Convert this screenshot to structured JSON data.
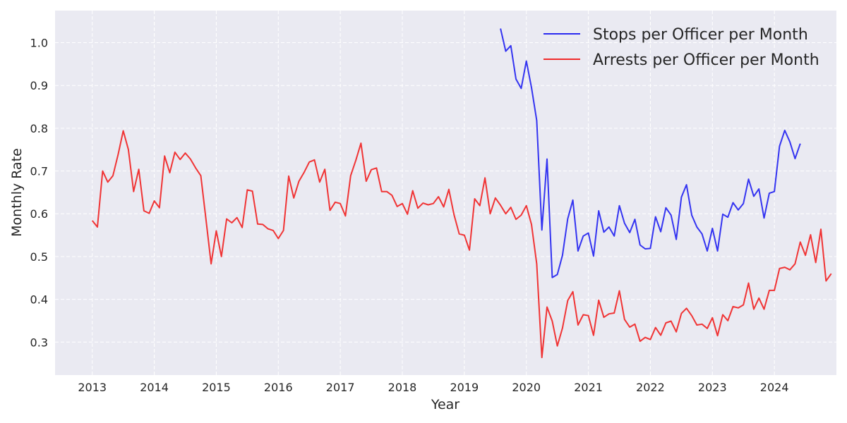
{
  "chart_data": {
    "type": "line",
    "title": "",
    "xlabel": "Year",
    "ylabel": "Monthly Rate",
    "xlim": [
      2012.4,
      2025.0
    ],
    "ylim": [
      0.223,
      1.075
    ],
    "xticks": [
      2013,
      2014,
      2015,
      2016,
      2017,
      2018,
      2019,
      2020,
      2021,
      2022,
      2023,
      2024
    ],
    "xtick_labels": [
      "2013",
      "2014",
      "2015",
      "2016",
      "2017",
      "2018",
      "2019",
      "2020",
      "2021",
      "2022",
      "2023",
      "2024"
    ],
    "yticks": [
      0.3,
      0.4,
      0.5,
      0.6,
      0.7,
      0.8,
      0.9,
      1.0
    ],
    "ytick_labels": [
      "0.3",
      "0.4",
      "0.5",
      "0.6",
      "0.7",
      "0.8",
      "0.9",
      "1.0"
    ],
    "grid": true,
    "legend_position": "top-right",
    "background_color": "#eaeaf2",
    "series": [
      {
        "name": "Stops per Officer per Month",
        "color": "#2a2af0",
        "x": [
          2019.583,
          2019.667,
          2019.75,
          2019.833,
          2019.917,
          2020.0,
          2020.083,
          2020.167,
          2020.25,
          2020.333,
          2020.417,
          2020.5,
          2020.583,
          2020.667,
          2020.75,
          2020.833,
          2020.917,
          2021.0,
          2021.083,
          2021.167,
          2021.25,
          2021.333,
          2021.417,
          2021.5,
          2021.583,
          2021.667,
          2021.75,
          2021.833,
          2021.917,
          2022.0,
          2022.083,
          2022.167,
          2022.25,
          2022.333,
          2022.417,
          2022.5,
          2022.583,
          2022.667,
          2022.75,
          2022.833,
          2022.917,
          2023.0,
          2023.083,
          2023.167,
          2023.25,
          2023.333,
          2023.417,
          2023.5,
          2023.583,
          2023.667,
          2023.75,
          2023.833,
          2023.917,
          2024.0,
          2024.083,
          2024.167,
          2024.25,
          2024.333,
          2024.417
        ],
        "y": [
          1.033,
          0.98,
          0.993,
          0.915,
          0.893,
          0.957,
          0.895,
          0.818,
          0.562,
          0.728,
          0.451,
          0.458,
          0.503,
          0.588,
          0.632,
          0.513,
          0.548,
          0.555,
          0.501,
          0.607,
          0.557,
          0.569,
          0.548,
          0.619,
          0.578,
          0.556,
          0.587,
          0.527,
          0.518,
          0.519,
          0.593,
          0.558,
          0.614,
          0.597,
          0.54,
          0.639,
          0.668,
          0.597,
          0.569,
          0.553,
          0.513,
          0.566,
          0.513,
          0.599,
          0.592,
          0.626,
          0.609,
          0.624,
          0.681,
          0.641,
          0.658,
          0.59,
          0.648,
          0.652,
          0.758,
          0.795,
          0.768,
          0.729,
          0.764
        ]
      },
      {
        "name": "Arrests per Officer per Month",
        "color": "#f02a2a",
        "x": [
          2013.0,
          2013.083,
          2013.167,
          2013.25,
          2013.333,
          2013.417,
          2013.5,
          2013.583,
          2013.667,
          2013.75,
          2013.833,
          2013.917,
          2014.0,
          2014.083,
          2014.167,
          2014.25,
          2014.333,
          2014.417,
          2014.5,
          2014.583,
          2014.667,
          2014.75,
          2014.833,
          2014.917,
          2015.0,
          2015.083,
          2015.167,
          2015.25,
          2015.333,
          2015.417,
          2015.5,
          2015.583,
          2015.667,
          2015.75,
          2015.833,
          2015.917,
          2016.0,
          2016.083,
          2016.167,
          2016.25,
          2016.333,
          2016.417,
          2016.5,
          2016.583,
          2016.667,
          2016.75,
          2016.833,
          2016.917,
          2017.0,
          2017.083,
          2017.167,
          2017.25,
          2017.333,
          2017.417,
          2017.5,
          2017.583,
          2017.667,
          2017.75,
          2017.833,
          2017.917,
          2018.0,
          2018.083,
          2018.167,
          2018.25,
          2018.333,
          2018.417,
          2018.5,
          2018.583,
          2018.667,
          2018.75,
          2018.833,
          2018.917,
          2019.0,
          2019.083,
          2019.167,
          2019.25,
          2019.333,
          2019.417,
          2019.5,
          2019.583,
          2019.667,
          2019.75,
          2019.833,
          2019.917,
          2020.0,
          2020.083,
          2020.167,
          2020.25,
          2020.333,
          2020.417,
          2020.5,
          2020.583,
          2020.667,
          2020.75,
          2020.833,
          2020.917,
          2021.0,
          2021.083,
          2021.167,
          2021.25,
          2021.333,
          2021.417,
          2021.5,
          2021.583,
          2021.667,
          2021.75,
          2021.833,
          2021.917,
          2022.0,
          2022.083,
          2022.167,
          2022.25,
          2022.333,
          2022.417,
          2022.5,
          2022.583,
          2022.667,
          2022.75,
          2022.833,
          2022.917,
          2023.0,
          2023.083,
          2023.167,
          2023.25,
          2023.333,
          2023.417,
          2023.5,
          2023.583,
          2023.667,
          2023.75,
          2023.833,
          2023.917,
          2024.0,
          2024.083,
          2024.167,
          2024.25,
          2024.333,
          2024.417,
          2024.5,
          2024.583,
          2024.667,
          2024.75,
          2024.833,
          2024.917
        ],
        "y": [
          0.584,
          0.569,
          0.7,
          0.674,
          0.689,
          0.739,
          0.794,
          0.75,
          0.652,
          0.704,
          0.607,
          0.601,
          0.63,
          0.614,
          0.735,
          0.696,
          0.744,
          0.727,
          0.742,
          0.728,
          0.707,
          0.689,
          0.587,
          0.483,
          0.56,
          0.5,
          0.588,
          0.579,
          0.591,
          0.568,
          0.656,
          0.653,
          0.576,
          0.575,
          0.565,
          0.561,
          0.542,
          0.561,
          0.688,
          0.637,
          0.676,
          0.697,
          0.721,
          0.726,
          0.674,
          0.704,
          0.608,
          0.627,
          0.624,
          0.595,
          0.689,
          0.725,
          0.765,
          0.676,
          0.703,
          0.707,
          0.652,
          0.652,
          0.643,
          0.617,
          0.624,
          0.599,
          0.654,
          0.613,
          0.625,
          0.621,
          0.624,
          0.64,
          0.616,
          0.657,
          0.598,
          0.553,
          0.55,
          0.515,
          0.635,
          0.619,
          0.684,
          0.6,
          0.637,
          0.62,
          0.6,
          0.615,
          0.587,
          0.597,
          0.619,
          0.575,
          0.483,
          0.264,
          0.382,
          0.349,
          0.291,
          0.333,
          0.397,
          0.418,
          0.34,
          0.364,
          0.362,
          0.316,
          0.398,
          0.358,
          0.366,
          0.368,
          0.42,
          0.353,
          0.335,
          0.342,
          0.302,
          0.311,
          0.306,
          0.334,
          0.316,
          0.345,
          0.349,
          0.324,
          0.367,
          0.379,
          0.362,
          0.34,
          0.342,
          0.332,
          0.357,
          0.315,
          0.364,
          0.35,
          0.383,
          0.38,
          0.387,
          0.438,
          0.377,
          0.403,
          0.377,
          0.421,
          0.421,
          0.472,
          0.475,
          0.469,
          0.483,
          0.534,
          0.503,
          0.551,
          0.486,
          0.564,
          0.443,
          0.46
        ]
      }
    ]
  }
}
